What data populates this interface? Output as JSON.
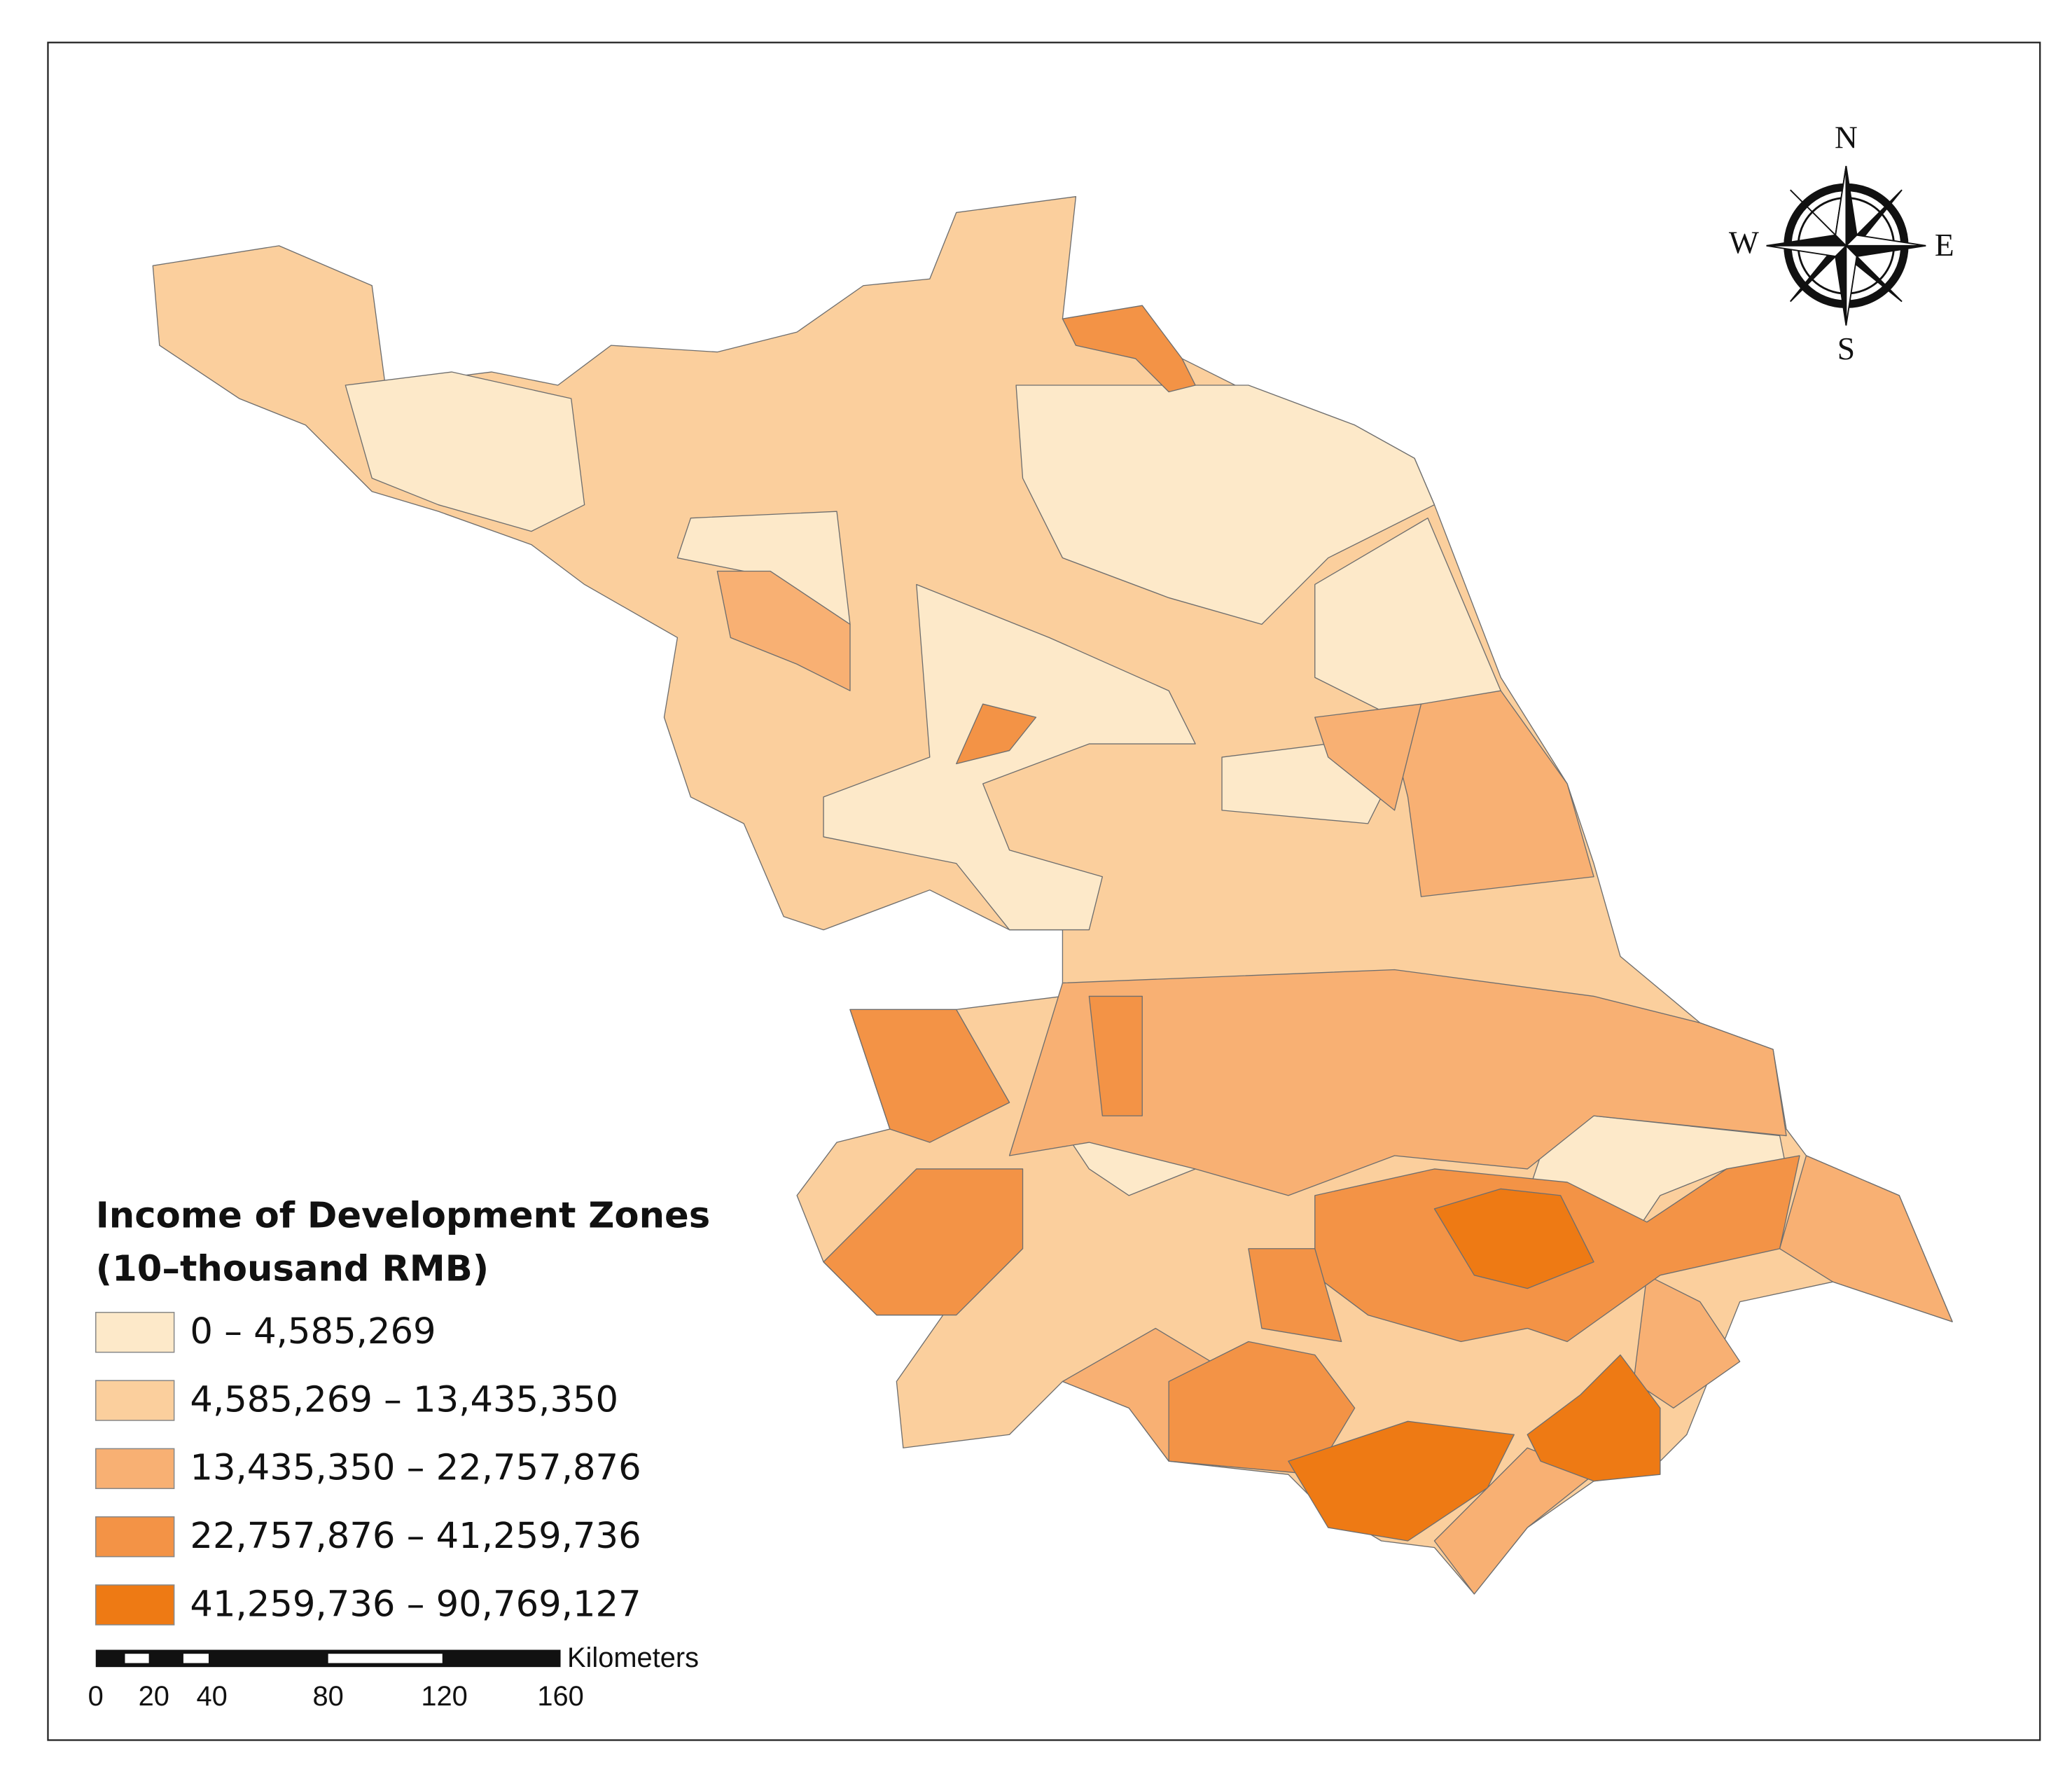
{
  "map": {
    "legend": {
      "title": [
        "Income of Development Zones",
        "(10–thousand RMB)"
      ],
      "items": [
        {
          "label": "0 – 4,585,269",
          "color": "#fde9c9"
        },
        {
          "label": "4,585,269 – 13,435,350",
          "color": "#fbcf9d"
        },
        {
          "label": "13,435,350 – 22,757,876",
          "color": "#f8b073"
        },
        {
          "label": "22,757,876 – 41,259,736",
          "color": "#f39346"
        },
        {
          "label": "41,259,736 – 90,769,127",
          "color": "#ee7a14"
        }
      ]
    },
    "compass": {
      "north": "N",
      "south": "S",
      "east": "E",
      "west": "W"
    },
    "scale_bar": {
      "unit": "Kilometers",
      "ticks": [
        0,
        20,
        40,
        80,
        120,
        160
      ]
    }
  }
}
